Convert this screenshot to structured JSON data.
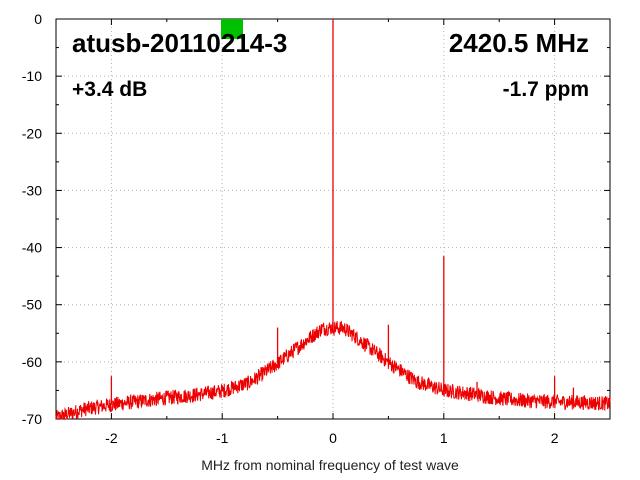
{
  "chart_data": {
    "type": "line",
    "title": "",
    "xlabel": "MHz from nominal frequency of test wave",
    "ylabel": "",
    "xlim": [
      -2.5,
      2.5
    ],
    "ylim": [
      -70,
      0
    ],
    "x_ticks": [
      -2,
      -1,
      0,
      1,
      2
    ],
    "x_tick_labels": [
      "-2",
      "-1",
      "0",
      "1",
      "2"
    ],
    "y_ticks": [
      0,
      -10,
      -20,
      -30,
      -40,
      -50,
      -60,
      -70
    ],
    "y_tick_labels": [
      "0",
      "-10",
      "-20",
      "-30",
      "-40",
      "-50",
      "-60",
      "-70"
    ],
    "grid": true,
    "series_color": "#ee0000",
    "annotations": {
      "device": "atusb-20110214-3",
      "frequency": "2420.5 MHz",
      "gain": "+3.4 dB",
      "offset": "-1.7 ppm",
      "status_color": "#00c000"
    },
    "series": [
      {
        "values_x": [
          -2.5,
          -2.25,
          -2.0,
          -1.75,
          -1.5,
          -1.25,
          -1.0,
          -0.75,
          -0.5,
          -0.25,
          -0.1,
          0.0,
          0.1,
          0.25,
          0.5,
          0.75,
          1.0,
          1.25,
          1.5,
          1.75,
          2.0,
          2.25,
          2.5
        ],
        "values_y": [
          -69.8,
          -68.3,
          -67.5,
          -66.9,
          -66.3,
          -65.8,
          -65.1,
          -63.6,
          -60.3,
          -56.4,
          -54.2,
          -54.0,
          -54.1,
          -56.3,
          -60.1,
          -63.4,
          -65.0,
          -65.6,
          -66.4,
          -66.8,
          -67.0,
          -67.1,
          -67.3
        ],
        "spikes": [
          {
            "x": -2.0,
            "y": -62.5
          },
          {
            "x": -0.5,
            "y": -54.0
          },
          {
            "x": 0.0,
            "y": 0.0
          },
          {
            "x": 0.5,
            "y": -53.5
          },
          {
            "x": 1.0,
            "y": -41.5
          },
          {
            "x": 1.3,
            "y": -63.5
          },
          {
            "x": 2.0,
            "y": -62.5
          },
          {
            "x": 2.17,
            "y": -64.5
          }
        ]
      }
    ]
  }
}
